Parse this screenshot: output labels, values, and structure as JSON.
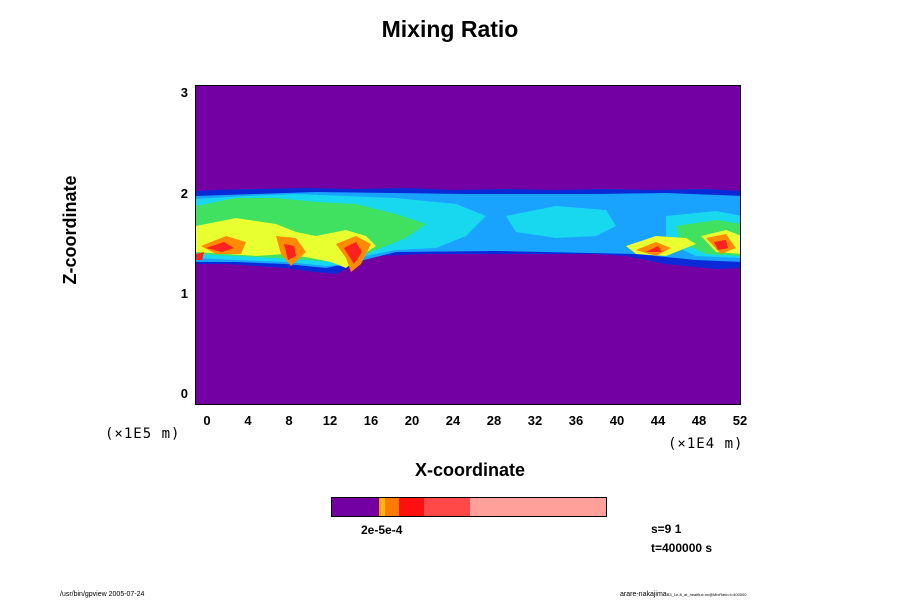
{
  "chart_data": {
    "type": "heatmap",
    "title": "Mixing Ratio",
    "xlabel": "X-coordinate",
    "ylabel": "Z-coordinate",
    "x_ticks": [
      "0",
      "4",
      "8",
      "12",
      "16",
      "20",
      "24",
      "28",
      "32",
      "36",
      "40",
      "44",
      "48",
      "52"
    ],
    "y_ticks": [
      "0",
      "1",
      "2",
      "3"
    ],
    "xlim": [
      0,
      52
    ],
    "ylim": [
      0,
      3
    ],
    "x_scale": "(×1E4 m)",
    "y_scale": "(×1E5 m)",
    "colorbar_label": "2e-5e-4",
    "colorbar_colors": [
      "#7300a3",
      "#ff9900",
      "#ffbb00",
      "#ff7a00",
      "#ff1010",
      "#ff4848",
      "#ffa09a"
    ],
    "colorbar_fractions": [
      0.17,
      0.01,
      0.015,
      0.05,
      0.09,
      0.17,
      0.495
    ],
    "field_colors": {
      "background": "#7300a3",
      "band_outer": "#0a2ad8",
      "band_light_blue": "#1aa2ff",
      "band_cyan": "#18d8f0",
      "band_green": "#40e060",
      "band_yellow": "#e8ff30",
      "band_orange": "#ff8c00",
      "band_red": "#ff2020"
    },
    "band_z_range": [
      1.35,
      2.0
    ]
  },
  "info": {
    "s": "s=9 1",
    "t": "t=400000 s"
  },
  "footer": {
    "left": "/usr/bin/gpview 2005-07-24",
    "right": "arare-nakajima",
    "right_small": "B3_1e-8_at_heatflux.nc@MixRatio,t=400000"
  }
}
